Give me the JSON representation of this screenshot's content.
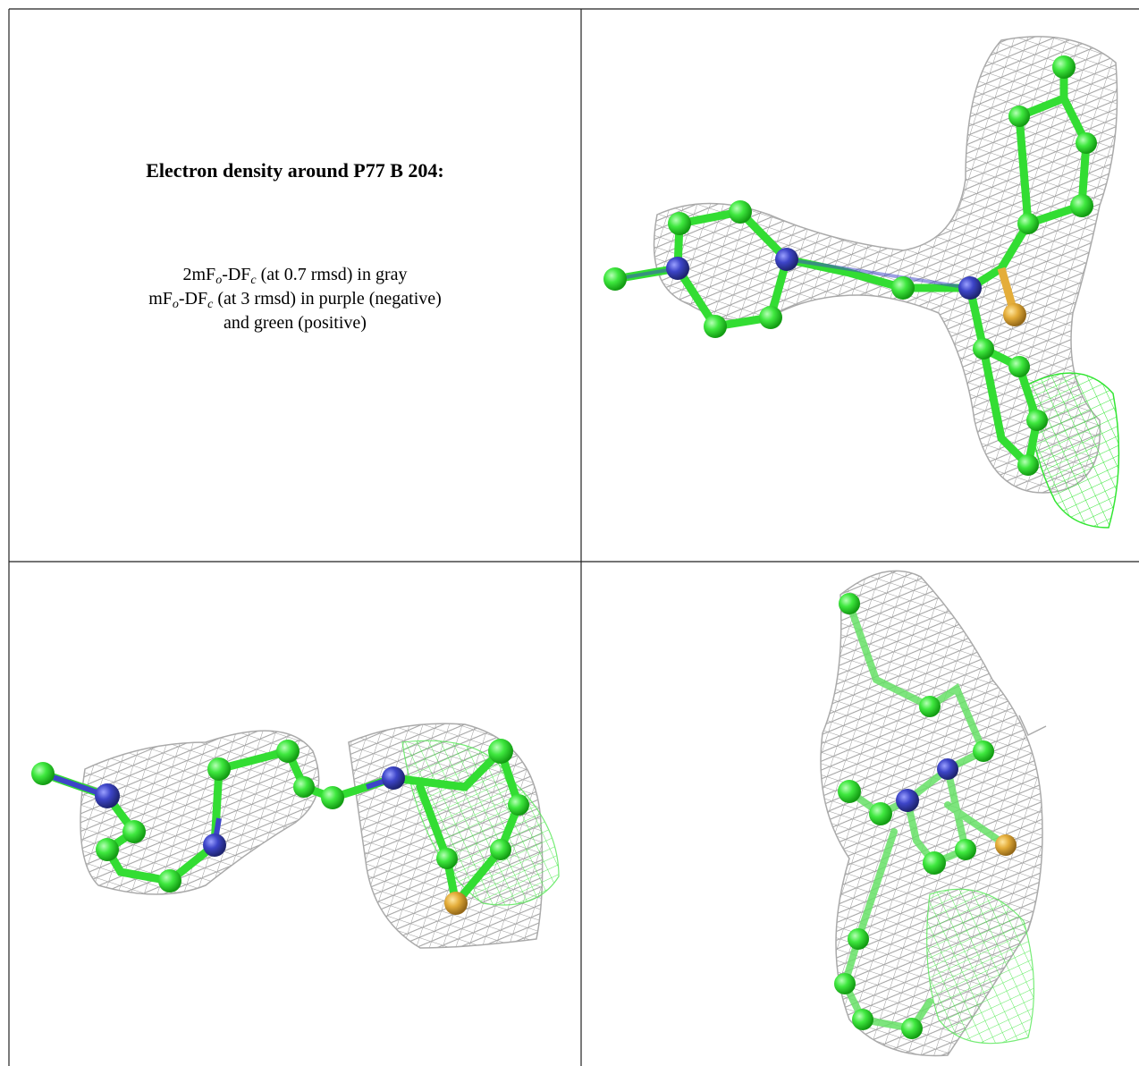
{
  "caption": {
    "title": "Electron density around P77 B 204:",
    "lines": [
      [
        "2mF",
        "o",
        "-DF",
        "c",
        " (at 0.7 rmsd) in gray"
      ],
      [
        "mF",
        "o",
        "-DF",
        "c",
        " (at 3 rmsd) in purple (negative)"
      ],
      [
        "and green (positive)"
      ]
    ]
  }
}
